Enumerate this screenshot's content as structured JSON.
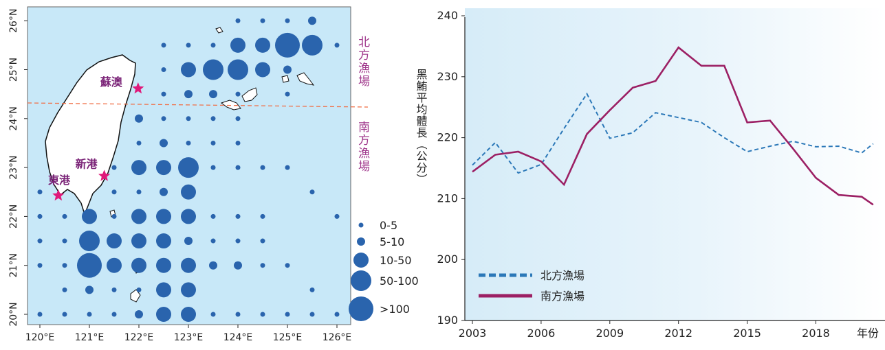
{
  "chart_data": [
    {
      "type": "scatter",
      "subtype": "bubble-map",
      "x_ticks": [
        "120°E",
        "121°E",
        "122°E",
        "123°E",
        "124°E",
        "125°E",
        "126°E"
      ],
      "y_ticks": [
        "20°N",
        "21°N",
        "22°N",
        "23°N",
        "24°N",
        "25°N",
        "26°N"
      ],
      "xlim": [
        120,
        126
      ],
      "ylim": [
        20,
        26.2
      ],
      "background_color": "#c8e8f8",
      "dot_color": "#2a64ad",
      "star_color": "#e0197a",
      "boundary_color": "#f07048",
      "boundary_lat": 24.3,
      "region_labels": [
        "北方漁場",
        "南方漁場"
      ],
      "ports": [
        {
          "name": "蘇澳",
          "lon": 121.9,
          "lat": 24.6
        },
        {
          "name": "新港",
          "lon": 121.3,
          "lat": 22.8
        },
        {
          "name": "東港",
          "lon": 120.4,
          "lat": 22.4
        }
      ],
      "legend": {
        "labels": [
          "0-5",
          "5-10",
          "10-50",
          "50-100",
          ">100"
        ],
        "position": "bottom-right"
      },
      "points": [
        {
          "lon": 124,
          "lat": 26,
          "c": 0
        },
        {
          "lon": 124.5,
          "lat": 26,
          "c": 0
        },
        {
          "lon": 125,
          "lat": 26,
          "c": 0
        },
        {
          "lon": 125.5,
          "lat": 26,
          "c": 1
        },
        {
          "lon": 122.5,
          "lat": 25.5,
          "c": 0
        },
        {
          "lon": 123,
          "lat": 25.5,
          "c": 0
        },
        {
          "lon": 123.5,
          "lat": 25.5,
          "c": 0
        },
        {
          "lon": 124,
          "lat": 25.5,
          "c": 2
        },
        {
          "lon": 124.5,
          "lat": 25.5,
          "c": 2
        },
        {
          "lon": 125,
          "lat": 25.5,
          "c": 4
        },
        {
          "lon": 125.5,
          "lat": 25.5,
          "c": 3
        },
        {
          "lon": 126,
          "lat": 25.5,
          "c": 0
        },
        {
          "lon": 122.5,
          "lat": 25,
          "c": 0
        },
        {
          "lon": 123,
          "lat": 25,
          "c": 2
        },
        {
          "lon": 123.5,
          "lat": 25,
          "c": 3
        },
        {
          "lon": 124,
          "lat": 25,
          "c": 3
        },
        {
          "lon": 124.5,
          "lat": 25,
          "c": 2
        },
        {
          "lon": 125,
          "lat": 25,
          "c": 1
        },
        {
          "lon": 122.5,
          "lat": 24.5,
          "c": 0
        },
        {
          "lon": 123,
          "lat": 24.5,
          "c": 1
        },
        {
          "lon": 123.5,
          "lat": 24.5,
          "c": 1
        },
        {
          "lon": 124,
          "lat": 24.5,
          "c": 0
        },
        {
          "lon": 125,
          "lat": 24.5,
          "c": 0
        },
        {
          "lon": 122,
          "lat": 24,
          "c": 1
        },
        {
          "lon": 122.5,
          "lat": 24,
          "c": 0
        },
        {
          "lon": 123,
          "lat": 24,
          "c": 0
        },
        {
          "lon": 123.5,
          "lat": 24,
          "c": 0
        },
        {
          "lon": 124,
          "lat": 24,
          "c": 0
        },
        {
          "lon": 122,
          "lat": 23.5,
          "c": 0
        },
        {
          "lon": 122.5,
          "lat": 23.5,
          "c": 1
        },
        {
          "lon": 123,
          "lat": 23.5,
          "c": 0
        },
        {
          "lon": 123.5,
          "lat": 23.5,
          "c": 0
        },
        {
          "lon": 124,
          "lat": 23.5,
          "c": 0
        },
        {
          "lon": 121.5,
          "lat": 23,
          "c": 0
        },
        {
          "lon": 122,
          "lat": 23,
          "c": 2
        },
        {
          "lon": 122.5,
          "lat": 23,
          "c": 2
        },
        {
          "lon": 123,
          "lat": 23,
          "c": 3
        },
        {
          "lon": 123.5,
          "lat": 23,
          "c": 0
        },
        {
          "lon": 124,
          "lat": 23,
          "c": 0
        },
        {
          "lon": 124.5,
          "lat": 23,
          "c": 0
        },
        {
          "lon": 125,
          "lat": 23,
          "c": 0
        },
        {
          "lon": 120,
          "lat": 22.5,
          "c": 0
        },
        {
          "lon": 121.5,
          "lat": 22.5,
          "c": 0
        },
        {
          "lon": 122,
          "lat": 22.5,
          "c": 0
        },
        {
          "lon": 122.5,
          "lat": 22.5,
          "c": 1
        },
        {
          "lon": 123,
          "lat": 22.5,
          "c": 2
        },
        {
          "lon": 125.5,
          "lat": 22.5,
          "c": 0
        },
        {
          "lon": 120,
          "lat": 22,
          "c": 0
        },
        {
          "lon": 120.5,
          "lat": 22,
          "c": 0
        },
        {
          "lon": 121,
          "lat": 22,
          "c": 2
        },
        {
          "lon": 121.5,
          "lat": 22,
          "c": 0
        },
        {
          "lon": 122,
          "lat": 22,
          "c": 2
        },
        {
          "lon": 122.5,
          "lat": 22,
          "c": 2
        },
        {
          "lon": 123,
          "lat": 22,
          "c": 2
        },
        {
          "lon": 123.5,
          "lat": 22,
          "c": 0
        },
        {
          "lon": 124,
          "lat": 22,
          "c": 0
        },
        {
          "lon": 124.5,
          "lat": 22,
          "c": 0
        },
        {
          "lon": 126,
          "lat": 22,
          "c": 0
        },
        {
          "lon": 120,
          "lat": 21.5,
          "c": 0
        },
        {
          "lon": 120.5,
          "lat": 21.5,
          "c": 0
        },
        {
          "lon": 121,
          "lat": 21.5,
          "c": 3
        },
        {
          "lon": 121.5,
          "lat": 21.5,
          "c": 2
        },
        {
          "lon": 122,
          "lat": 21.5,
          "c": 2
        },
        {
          "lon": 122.5,
          "lat": 21.5,
          "c": 2
        },
        {
          "lon": 123,
          "lat": 21.5,
          "c": 1
        },
        {
          "lon": 123.5,
          "lat": 21.5,
          "c": 0
        },
        {
          "lon": 124,
          "lat": 21.5,
          "c": 0
        },
        {
          "lon": 124.5,
          "lat": 21.5,
          "c": 0
        },
        {
          "lon": 120,
          "lat": 21,
          "c": 0
        },
        {
          "lon": 120.5,
          "lat": 21,
          "c": 0
        },
        {
          "lon": 121,
          "lat": 21,
          "c": 4
        },
        {
          "lon": 121.5,
          "lat": 21,
          "c": 2
        },
        {
          "lon": 122,
          "lat": 21,
          "c": 2
        },
        {
          "lon": 122.5,
          "lat": 21,
          "c": 2
        },
        {
          "lon": 123,
          "lat": 21,
          "c": 2
        },
        {
          "lon": 123.5,
          "lat": 21,
          "c": 1
        },
        {
          "lon": 124,
          "lat": 21,
          "c": 1
        },
        {
          "lon": 124.5,
          "lat": 21,
          "c": 0
        },
        {
          "lon": 125,
          "lat": 21,
          "c": 0
        },
        {
          "lon": 120.5,
          "lat": 20.5,
          "c": 0
        },
        {
          "lon": 121,
          "lat": 20.5,
          "c": 1
        },
        {
          "lon": 121.5,
          "lat": 20.5,
          "c": 0
        },
        {
          "lon": 122,
          "lat": 20.5,
          "c": 0
        },
        {
          "lon": 122.5,
          "lat": 20.5,
          "c": 2
        },
        {
          "lon": 123,
          "lat": 20.5,
          "c": 2
        },
        {
          "lon": 125.5,
          "lat": 20.5,
          "c": 0
        },
        {
          "lon": 120,
          "lat": 20,
          "c": 0
        },
        {
          "lon": 120.5,
          "lat": 20,
          "c": 0
        },
        {
          "lon": 121,
          "lat": 20,
          "c": 0
        },
        {
          "lon": 121.5,
          "lat": 20,
          "c": 0
        },
        {
          "lon": 122,
          "lat": 20,
          "c": 1
        },
        {
          "lon": 122.5,
          "lat": 20,
          "c": 2
        },
        {
          "lon": 123,
          "lat": 20,
          "c": 2
        },
        {
          "lon": 123.5,
          "lat": 20,
          "c": 0
        },
        {
          "lon": 124,
          "lat": 20,
          "c": 0
        },
        {
          "lon": 124.5,
          "lat": 20,
          "c": 0
        },
        {
          "lon": 125,
          "lat": 20,
          "c": 0
        },
        {
          "lon": 125.5,
          "lat": 20,
          "c": 0
        },
        {
          "lon": 126,
          "lat": 20,
          "c": 0
        }
      ]
    },
    {
      "type": "line",
      "title": "",
      "xlabel": "年份",
      "ylabel": "黑鮪平均體長（公分）",
      "x_ticks": [
        "2003",
        "2006",
        "2009",
        "2012",
        "2015",
        "2018"
      ],
      "y_ticks": [
        "190",
        "200",
        "210",
        "220",
        "230",
        "240"
      ],
      "xlim": [
        2003,
        2020
      ],
      "ylim": [
        190,
        240
      ],
      "grid": false,
      "legend_position": "bottom-left",
      "x": [
        2003,
        2004,
        2005,
        2006,
        2007,
        2008,
        2009,
        2010,
        2011,
        2012,
        2013,
        2014,
        2015,
        2016,
        2017,
        2018,
        2019,
        2020
      ],
      "series": [
        {
          "name": "北方漁場",
          "style": "dashed",
          "color": "#2b78b8",
          "values": [
            215.5,
            219.2,
            214.2,
            215.6,
            221.5,
            227.2,
            219.9,
            220.8,
            224.1,
            223.3,
            222.5,
            220.0,
            217.7,
            218.6,
            219.4,
            218.5,
            218.6,
            217.5
          ]
        },
        {
          "name": "南方漁場",
          "style": "solid",
          "color": "#9c2064",
          "values": [
            214.4,
            217.2,
            217.7,
            216.1,
            212.3,
            220.6,
            224.5,
            228.2,
            229.3,
            234.8,
            231.8,
            231.8,
            222.5,
            222.8,
            218.2,
            213.4,
            210.6,
            210.3
          ]
        }
      ],
      "extra_point_2020_5": {
        "series": "南方漁場",
        "value": 209.0
      }
    }
  ]
}
